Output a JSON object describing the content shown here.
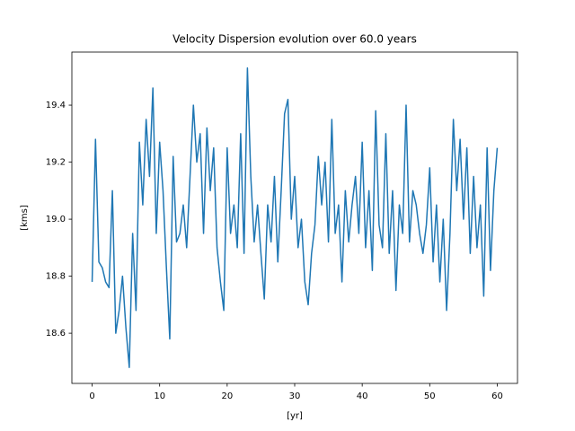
{
  "chart_data": {
    "type": "line",
    "title": "Velocity Dispersion evolution over 60.0 years",
    "x_label": "[yr]",
    "y_label": "[kms]",
    "color": "#1f77b4",
    "x": [
      0,
      0.5,
      1,
      1.5,
      2,
      2.5,
      3,
      3.5,
      4,
      4.5,
      5,
      5.5,
      6,
      6.5,
      7,
      7.5,
      8,
      8.5,
      9,
      9.5,
      10,
      10.5,
      11,
      11.5,
      12,
      12.5,
      13,
      13.5,
      14,
      14.5,
      15,
      15.5,
      16,
      16.5,
      17,
      17.5,
      18,
      18.5,
      19,
      19.5,
      20,
      20.5,
      21,
      21.5,
      22,
      22.5,
      23,
      23.5,
      24,
      24.5,
      25,
      25.5,
      26,
      26.5,
      27,
      27.5,
      28,
      28.5,
      29,
      29.5,
      30,
      30.5,
      31,
      31.5,
      32,
      32.5,
      33,
      33.5,
      34,
      34.5,
      35,
      35.5,
      36,
      36.5,
      37,
      37.5,
      38,
      38.5,
      39,
      39.5,
      40,
      40.5,
      41,
      41.5,
      42,
      42.5,
      43,
      43.5,
      44,
      44.5,
      45,
      45.5,
      46,
      46.5,
      47,
      47.5,
      48,
      48.5,
      49,
      49.5,
      50,
      50.5,
      51,
      51.5,
      52,
      52.5,
      53,
      53.5,
      54,
      54.5,
      55,
      55.5,
      56,
      56.5,
      57,
      57.5,
      58,
      58.5,
      59,
      59.5,
      60
    ],
    "values": [
      18.78,
      19.28,
      18.85,
      18.83,
      18.78,
      18.76,
      19.1,
      18.6,
      18.68,
      18.8,
      18.62,
      18.48,
      18.95,
      18.68,
      19.27,
      19.05,
      19.35,
      19.15,
      19.46,
      18.95,
      19.27,
      19.1,
      18.83,
      18.58,
      19.22,
      18.92,
      18.95,
      19.05,
      18.9,
      19.15,
      19.4,
      19.2,
      19.3,
      18.95,
      19.32,
      19.1,
      19.25,
      18.9,
      18.78,
      18.68,
      19.25,
      18.95,
      19.05,
      18.9,
      19.3,
      18.88,
      19.53,
      19.15,
      18.92,
      19.05,
      18.88,
      18.72,
      19.05,
      18.92,
      19.15,
      18.85,
      19.1,
      19.37,
      19.42,
      19.0,
      19.15,
      18.9,
      19.0,
      18.78,
      18.7,
      18.88,
      18.98,
      19.22,
      19.05,
      19.2,
      18.92,
      19.35,
      18.95,
      19.05,
      18.78,
      19.1,
      18.92,
      19.05,
      19.15,
      18.95,
      19.27,
      18.9,
      19.1,
      18.82,
      19.38,
      18.98,
      18.9,
      19.3,
      18.88,
      19.1,
      18.75,
      19.05,
      18.95,
      19.4,
      18.92,
      19.1,
      19.05,
      18.95,
      18.88,
      18.98,
      19.18,
      18.85,
      19.05,
      18.78,
      19.0,
      18.68,
      18.95,
      19.35,
      19.1,
      19.28,
      19.0,
      19.25,
      18.88,
      19.15,
      18.9,
      19.05,
      18.73,
      19.25,
      18.82,
      19.1,
      19.25
    ],
    "xlim": [
      -3,
      63
    ],
    "ylim": [
      18.424,
      19.586
    ],
    "xticks": [
      0,
      10,
      20,
      30,
      40,
      50,
      60
    ],
    "yticks": [
      18.6,
      18.8,
      {
        "value": 19,
        "label": "19.0"
      },
      19.2,
      19.4
    ]
  }
}
